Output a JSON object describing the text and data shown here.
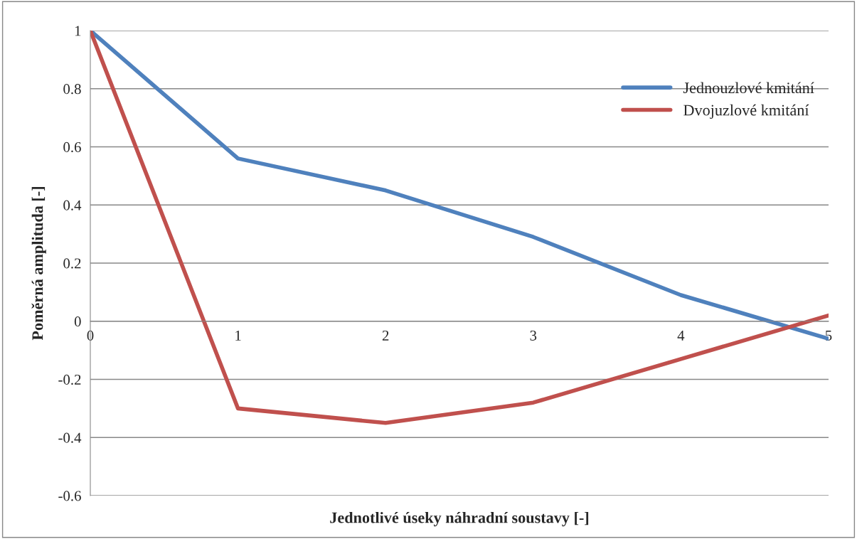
{
  "chart_data": {
    "type": "line",
    "xlabel": "Jednotlivé úseky náhradní soustavy [-]",
    "ylabel": "Poměrná amplituda [-]",
    "x": [
      0,
      1,
      2,
      3,
      4,
      5
    ],
    "series": [
      {
        "name": "Jednouzlové kmitání",
        "color": "#4f81bd",
        "values": [
          1,
          0.56,
          0.45,
          0.29,
          0.09,
          -0.06
        ]
      },
      {
        "name": "Dvojuzlové kmitání",
        "color": "#c0504d",
        "values": [
          1,
          -0.3,
          -0.35,
          -0.28,
          -0.13,
          0.02
        ]
      }
    ],
    "xlim": [
      0,
      5
    ],
    "xticks": [
      0,
      1,
      2,
      3,
      4,
      5
    ],
    "ylim": [
      -0.6,
      1
    ],
    "yticks": [
      -0.6,
      -0.4,
      -0.2,
      0,
      0.2,
      0.4,
      0.6,
      0.8,
      1
    ],
    "grid": "y",
    "legend": "top right",
    "marker": "none",
    "line_style": "solid"
  }
}
